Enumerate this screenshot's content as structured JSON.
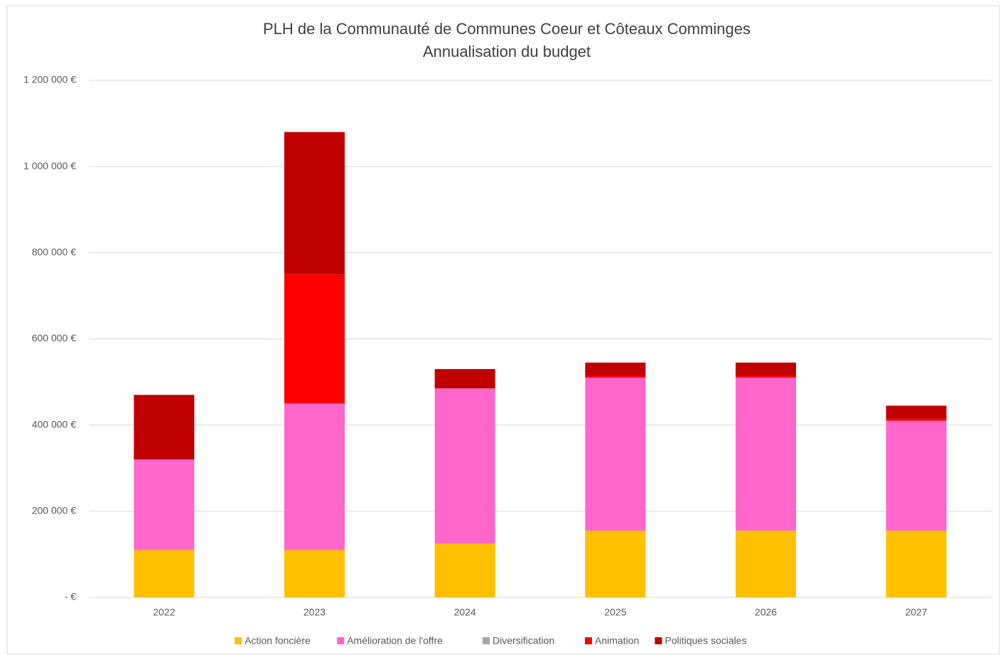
{
  "chart_data": {
    "type": "stacked_bar",
    "title": "PLH de la Communauté de Communes Coeur et Côteaux Comminges",
    "subtitle": "Annualisation du budget",
    "categories": [
      "2022",
      "2023",
      "2024",
      "2025",
      "2026",
      "2027"
    ],
    "series": [
      {
        "name": "Action foncière",
        "color": "#FFC000",
        "values": [
          110000,
          110000,
          125000,
          155000,
          155000,
          155000
        ]
      },
      {
        "name": "Amélioration de l'offre",
        "color": "#FF66CC",
        "values": [
          210000,
          340000,
          360000,
          355000,
          355000,
          255000
        ]
      },
      {
        "name": "Diversification",
        "color": "#A5A5A5",
        "values": [
          0,
          0,
          0,
          0,
          0,
          0
        ]
      },
      {
        "name": "Animation",
        "color": "#FF0000",
        "values": [
          0,
          300000,
          0,
          5000,
          5000,
          5000
        ]
      },
      {
        "name": "Politiques sociales",
        "color": "#C00000",
        "values": [
          150000,
          330000,
          45000,
          30000,
          30000,
          30000
        ]
      }
    ],
    "ylim": [
      0,
      1200000
    ],
    "yticks": [
      {
        "value": 0,
        "label": "-  €"
      },
      {
        "value": 200000,
        "label": "200 000 €"
      },
      {
        "value": 400000,
        "label": "400 000 €"
      },
      {
        "value": 600000,
        "label": "600 000 €"
      },
      {
        "value": 800000,
        "label": "800 000 €"
      },
      {
        "value": 1000000,
        "label": "1 000 000 €"
      },
      {
        "value": 1200000,
        "label": "1 200 000 €"
      }
    ],
    "grid": true,
    "legend": "bottom"
  }
}
